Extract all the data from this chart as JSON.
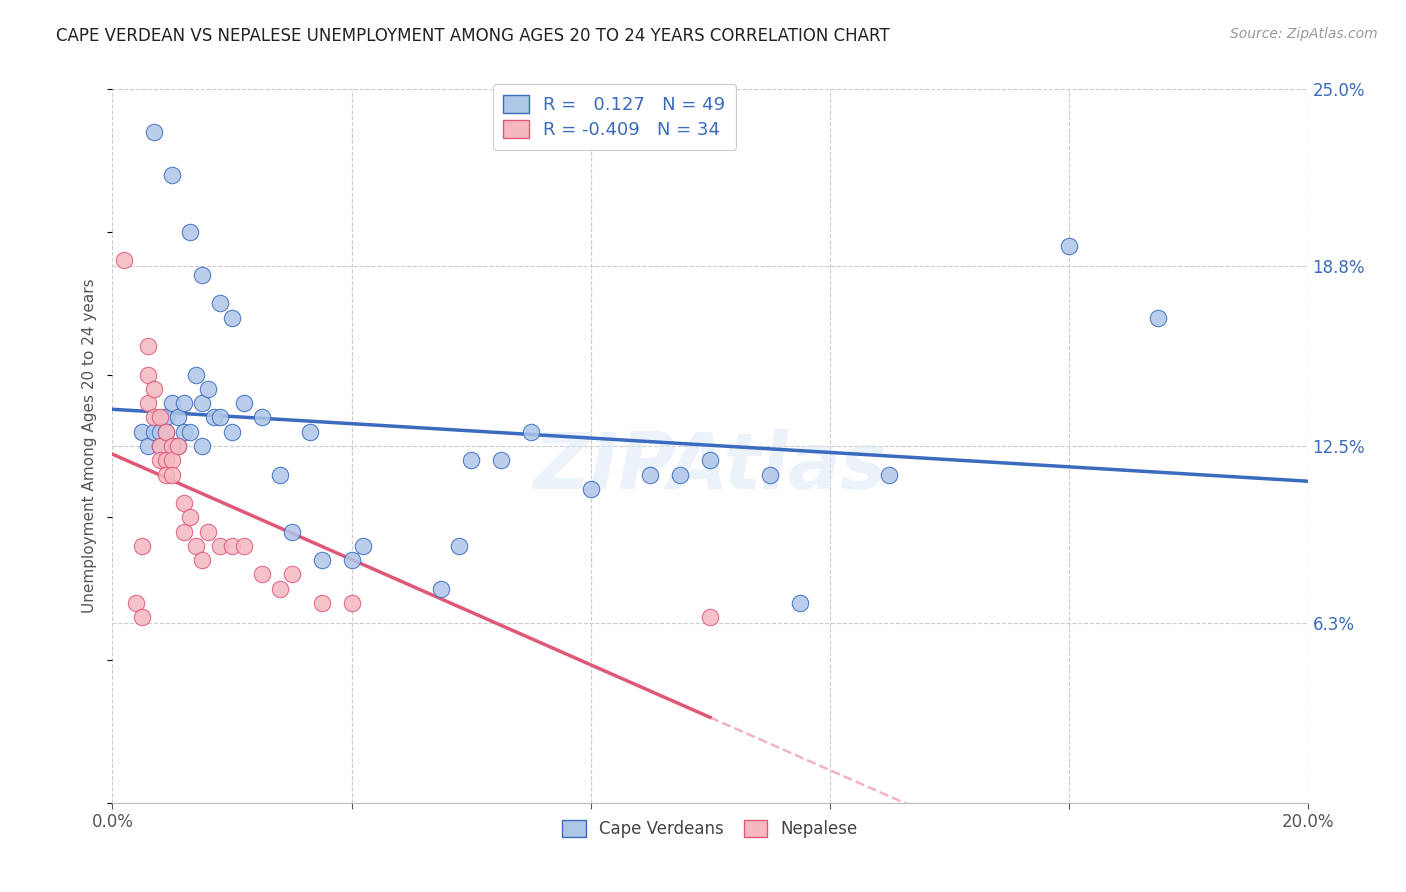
{
  "title": "CAPE VERDEAN VS NEPALESE UNEMPLOYMENT AMONG AGES 20 TO 24 YEARS CORRELATION CHART",
  "source": "Source: ZipAtlas.com",
  "ylabel": "Unemployment Among Ages 20 to 24 years",
  "xlim": [
    0.0,
    0.2
  ],
  "ylim": [
    0.0,
    0.25
  ],
  "y_ticks_right": [
    0.0,
    0.063,
    0.125,
    0.188,
    0.25
  ],
  "y_tick_labels_right": [
    "",
    "6.3%",
    "12.5%",
    "18.8%",
    "25.0%"
  ],
  "cv_R": 0.127,
  "cv_N": 49,
  "nep_R": -0.409,
  "nep_N": 34,
  "cv_color": "#aec6e8",
  "nep_color": "#f5b8c0",
  "cv_line_color": "#3a6bbf",
  "nep_line_color": "#e05878",
  "watermark": "ZIPAtlas",
  "legend_cv_label": "Cape Verdeans",
  "legend_nep_label": "Nepalese",
  "cv_scatter_x": [
    0.007,
    0.01,
    0.013,
    0.015,
    0.018,
    0.02,
    0.005,
    0.006,
    0.007,
    0.008,
    0.008,
    0.009,
    0.009,
    0.01,
    0.01,
    0.011,
    0.011,
    0.012,
    0.012,
    0.013,
    0.014,
    0.015,
    0.015,
    0.016,
    0.017,
    0.018,
    0.02,
    0.022,
    0.025,
    0.028,
    0.03,
    0.033,
    0.035,
    0.04,
    0.042,
    0.055,
    0.058,
    0.06,
    0.065,
    0.07,
    0.08,
    0.09,
    0.095,
    0.1,
    0.11,
    0.115,
    0.13,
    0.16,
    0.175
  ],
  "cv_scatter_y": [
    0.235,
    0.22,
    0.2,
    0.185,
    0.175,
    0.17,
    0.13,
    0.125,
    0.13,
    0.13,
    0.125,
    0.135,
    0.13,
    0.14,
    0.125,
    0.135,
    0.125,
    0.13,
    0.14,
    0.13,
    0.15,
    0.14,
    0.125,
    0.145,
    0.135,
    0.135,
    0.13,
    0.14,
    0.135,
    0.115,
    0.095,
    0.13,
    0.085,
    0.085,
    0.09,
    0.075,
    0.09,
    0.12,
    0.12,
    0.13,
    0.11,
    0.115,
    0.115,
    0.12,
    0.115,
    0.07,
    0.115,
    0.195,
    0.17
  ],
  "nep_scatter_x": [
    0.002,
    0.004,
    0.005,
    0.005,
    0.006,
    0.006,
    0.006,
    0.007,
    0.007,
    0.008,
    0.008,
    0.008,
    0.009,
    0.009,
    0.009,
    0.01,
    0.01,
    0.01,
    0.011,
    0.012,
    0.012,
    0.013,
    0.014,
    0.015,
    0.016,
    0.018,
    0.02,
    0.022,
    0.025,
    0.028,
    0.03,
    0.035,
    0.04,
    0.1
  ],
  "nep_scatter_y": [
    0.19,
    0.07,
    0.09,
    0.065,
    0.16,
    0.15,
    0.14,
    0.145,
    0.135,
    0.135,
    0.125,
    0.12,
    0.13,
    0.12,
    0.115,
    0.125,
    0.12,
    0.115,
    0.125,
    0.105,
    0.095,
    0.1,
    0.09,
    0.085,
    0.095,
    0.09,
    0.09,
    0.09,
    0.08,
    0.075,
    0.08,
    0.07,
    0.07,
    0.065
  ]
}
